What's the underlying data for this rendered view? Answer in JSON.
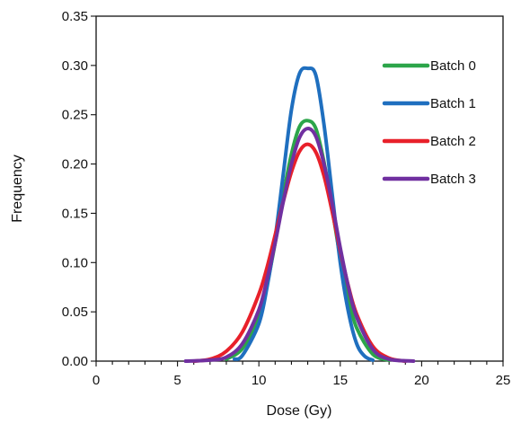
{
  "chart_data": {
    "type": "line",
    "title": "",
    "xlabel": "Dose (Gy)",
    "ylabel": "Frequency",
    "xlim": [
      0,
      25
    ],
    "ylim": [
      0,
      0.35
    ],
    "x_ticks": [
      0,
      5,
      10,
      15,
      20,
      25
    ],
    "x_tick_labels": [
      "0",
      "5",
      "10",
      "15",
      "20",
      "25"
    ],
    "y_ticks": [
      0,
      0.05,
      0.1,
      0.15,
      0.2,
      0.25,
      0.3,
      0.35
    ],
    "y_tick_labels": [
      "0.00",
      "0.05",
      "0.10",
      "0.15",
      "0.20",
      "0.25",
      "0.30",
      "0.35"
    ],
    "grid": false,
    "legend_position": "top-right",
    "series": [
      {
        "name": "Batch 0",
        "color": "#2ca54a",
        "x": [
          8,
          9,
          10,
          10.5,
          11,
          11.5,
          12,
          12.5,
          13,
          13.5,
          14,
          14.5,
          15,
          15.5,
          16,
          17,
          18
        ],
        "y": [
          0.002,
          0.013,
          0.045,
          0.078,
          0.12,
          0.168,
          0.21,
          0.238,
          0.244,
          0.236,
          0.202,
          0.155,
          0.105,
          0.064,
          0.034,
          0.007,
          0.001
        ]
      },
      {
        "name": "Batch 1",
        "color": "#1f6fbf",
        "x": [
          8.5,
          9,
          10,
          10.5,
          11,
          11.5,
          12,
          12.5,
          13,
          13.5,
          14,
          14.5,
          15,
          15.5,
          16,
          16.5,
          17
        ],
        "y": [
          0.002,
          0.006,
          0.038,
          0.075,
          0.125,
          0.19,
          0.255,
          0.292,
          0.297,
          0.29,
          0.24,
          0.17,
          0.1,
          0.05,
          0.018,
          0.005,
          0.001
        ]
      },
      {
        "name": "Batch 2",
        "color": "#e8202a",
        "x": [
          6,
          7,
          8,
          9,
          10,
          10.5,
          11,
          11.5,
          12,
          12.5,
          13,
          13.5,
          14,
          14.5,
          15,
          15.5,
          16,
          17,
          18,
          19
        ],
        "y": [
          0.0,
          0.002,
          0.01,
          0.03,
          0.068,
          0.095,
          0.128,
          0.162,
          0.192,
          0.213,
          0.22,
          0.212,
          0.188,
          0.152,
          0.112,
          0.076,
          0.048,
          0.015,
          0.003,
          0.0
        ]
      },
      {
        "name": "Batch 3",
        "color": "#7030a0",
        "x": [
          5.5,
          7,
          8,
          9,
          10,
          10.5,
          11,
          11.5,
          12,
          12.5,
          13,
          13.5,
          14,
          14.5,
          15,
          15.5,
          16,
          17,
          18,
          19.5
        ],
        "y": [
          0.0,
          0.001,
          0.004,
          0.018,
          0.052,
          0.083,
          0.12,
          0.162,
          0.2,
          0.227,
          0.236,
          0.228,
          0.2,
          0.16,
          0.115,
          0.075,
          0.045,
          0.012,
          0.002,
          0.0
        ]
      }
    ]
  }
}
